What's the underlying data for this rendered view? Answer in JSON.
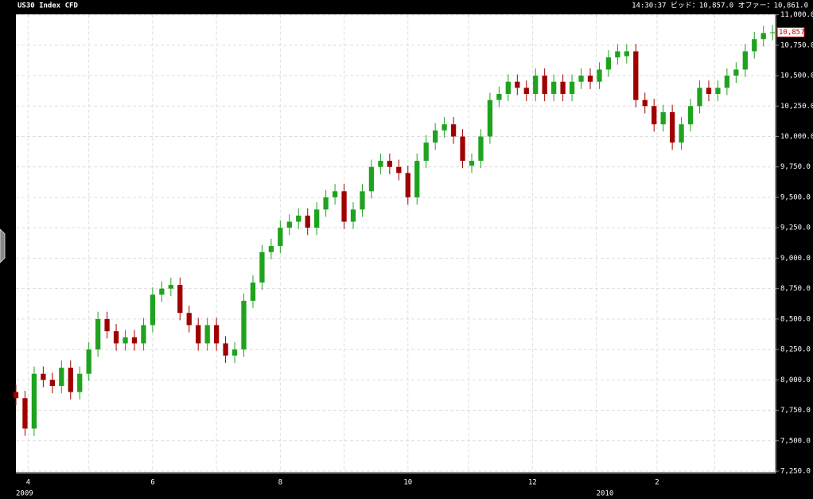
{
  "chart_data": {
    "type": "candlestick",
    "title": "US30 Index CFD",
    "quote": "14:30:37 ビッド：10,857.0 オファー：10,861.0",
    "last_price": {
      "value": 10857,
      "label": "10,857"
    },
    "up_color": "#1fa31f",
    "down_color": "#a00000",
    "xlim": [
      0,
      250
    ],
    "xticks": [
      {
        "value": 4,
        "label": "4"
      },
      {
        "value": 24,
        "label": null
      },
      {
        "value": 45,
        "label": "6"
      },
      {
        "value": 66,
        "label": null
      },
      {
        "value": 87,
        "label": "8"
      },
      {
        "value": 108,
        "label": null
      },
      {
        "value": 129,
        "label": "10"
      },
      {
        "value": 149,
        "label": null
      },
      {
        "value": 170,
        "label": "12"
      },
      {
        "value": 191,
        "label": null
      },
      {
        "value": 211,
        "label": "2"
      },
      {
        "value": 230,
        "label": null
      }
    ],
    "x_year_labels": [
      {
        "value": 0,
        "label": "2009"
      },
      {
        "value": 191,
        "label": "2010"
      }
    ],
    "ylim": [
      7250,
      11000
    ],
    "yticks": [
      {
        "value": 7250,
        "label": "7,250.0"
      },
      {
        "value": 7500,
        "label": "7,500.0"
      },
      {
        "value": 7750,
        "label": "7,750.0"
      },
      {
        "value": 8000,
        "label": "8,000.0"
      },
      {
        "value": 8250,
        "label": "8,250.0"
      },
      {
        "value": 8500,
        "label": "8,500.0"
      },
      {
        "value": 8750,
        "label": "8,750.0"
      },
      {
        "value": 9000,
        "label": "9,000.0"
      },
      {
        "value": 9250,
        "label": "9,250.0"
      },
      {
        "value": 9500,
        "label": "9,500.0"
      },
      {
        "value": 9750,
        "label": "9,750.0"
      },
      {
        "value": 10000,
        "label": "10,000.0"
      },
      {
        "value": 10250,
        "label": "10,250.0"
      },
      {
        "value": 10500,
        "label": "10,500.0"
      },
      {
        "value": 10750,
        "label": "10,750.0"
      },
      {
        "value": 11000,
        "label": "11,000.0"
      }
    ],
    "grid": true,
    "x": [
      0,
      3,
      6,
      9,
      12,
      15,
      18,
      21,
      24,
      27,
      30,
      33,
      36,
      39,
      42,
      45,
      48,
      51,
      54,
      57,
      60,
      63,
      66,
      69,
      72,
      75,
      78,
      81,
      84,
      87,
      90,
      93,
      96,
      99,
      102,
      105,
      108,
      111,
      114,
      117,
      120,
      123,
      126,
      129,
      132,
      135,
      138,
      141,
      144,
      147,
      150,
      153,
      156,
      159,
      162,
      165,
      168,
      171,
      174,
      177,
      180,
      183,
      186,
      189,
      192,
      195,
      198,
      201,
      204,
      207,
      210,
      213,
      216,
      219,
      222,
      225,
      228,
      231,
      234,
      237,
      240,
      243,
      246,
      249
    ],
    "open": [
      7900,
      7850,
      7600,
      8050,
      8000,
      7950,
      8100,
      7900,
      8050,
      8250,
      8500,
      8400,
      8300,
      8350,
      8300,
      8450,
      8700,
      8750,
      8780,
      8550,
      8450,
      8300,
      8450,
      8300,
      8200,
      8250,
      8650,
      8800,
      9050,
      9100,
      9250,
      9300,
      9350,
      9250,
      9400,
      9500,
      9550,
      9300,
      9400,
      9550,
      9750,
      9800,
      9750,
      9700,
      9500,
      9800,
      9950,
      10050,
      10100,
      10000,
      9760,
      9800,
      10000,
      10300,
      10350,
      10450,
      10400,
      10350,
      10500,
      10350,
      10450,
      10350,
      10450,
      10500,
      10450,
      10550,
      10650,
      10660,
      10700,
      10300,
      10250,
      10100,
      10200,
      9950,
      10100,
      10250,
      10400,
      10350,
      10400,
      10500,
      10550,
      10700,
      10800,
      10850
    ],
    "high": [
      7960,
      7910,
      8110,
      8110,
      8060,
      8160,
      8160,
      8110,
      8310,
      8560,
      8560,
      8460,
      8410,
      8410,
      8510,
      8760,
      8810,
      8840,
      8840,
      8610,
      8510,
      8510,
      8510,
      8360,
      8310,
      8710,
      8860,
      9110,
      9160,
      9310,
      9360,
      9410,
      9410,
      9460,
      9560,
      9610,
      9610,
      9460,
      9610,
      9810,
      9860,
      9860,
      9810,
      9760,
      9860,
      10010,
      10110,
      10160,
      10160,
      10060,
      9860,
      10060,
      10360,
      10410,
      10510,
      10510,
      10460,
      10560,
      10560,
      10510,
      10510,
      10510,
      10560,
      10560,
      10610,
      10710,
      10760,
      10760,
      10760,
      10360,
      10310,
      10260,
      10260,
      10160,
      10310,
      10460,
      10460,
      10460,
      10560,
      10610,
      10760,
      10860,
      10910,
      10917
    ],
    "low": [
      7790,
      7540,
      7540,
      7940,
      7890,
      7890,
      7840,
      7840,
      7990,
      8190,
      8340,
      8240,
      8240,
      8240,
      8240,
      8390,
      8640,
      8690,
      8490,
      8390,
      8240,
      8240,
      8240,
      8140,
      8140,
      8190,
      8590,
      8740,
      8990,
      9040,
      9190,
      9240,
      9190,
      9190,
      9340,
      9440,
      9240,
      9240,
      9340,
      9490,
      9690,
      9690,
      9640,
      9440,
      9440,
      9740,
      9890,
      9990,
      9940,
      9740,
      9700,
      9740,
      9940,
      10240,
      10290,
      10340,
      10290,
      10290,
      10290,
      10290,
      10290,
      10290,
      10390,
      10390,
      10390,
      10490,
      10590,
      10600,
      10240,
      10190,
      10040,
      10040,
      9890,
      9890,
      10040,
      10190,
      10290,
      10290,
      10340,
      10440,
      10490,
      10640,
      10740,
      10790
    ],
    "close": [
      7850,
      7600,
      8050,
      8000,
      7950,
      8100,
      7900,
      8050,
      8250,
      8500,
      8400,
      8300,
      8350,
      8300,
      8450,
      8700,
      8750,
      8780,
      8550,
      8450,
      8300,
      8450,
      8300,
      8200,
      8250,
      8650,
      8800,
      9050,
      9100,
      9250,
      9300,
      9350,
      9250,
      9400,
      9500,
      9550,
      9300,
      9400,
      9550,
      9750,
      9800,
      9750,
      9700,
      9500,
      9800,
      9950,
      10050,
      10100,
      10000,
      9800,
      9800,
      10000,
      10300,
      10350,
      10450,
      10400,
      10350,
      10500,
      10350,
      10450,
      10350,
      10450,
      10500,
      10450,
      10550,
      10650,
      10700,
      10700,
      10300,
      10250,
      10100,
      10200,
      9950,
      10100,
      10250,
      10400,
      10350,
      10400,
      10500,
      10550,
      10700,
      10800,
      10850,
      10857
    ]
  }
}
